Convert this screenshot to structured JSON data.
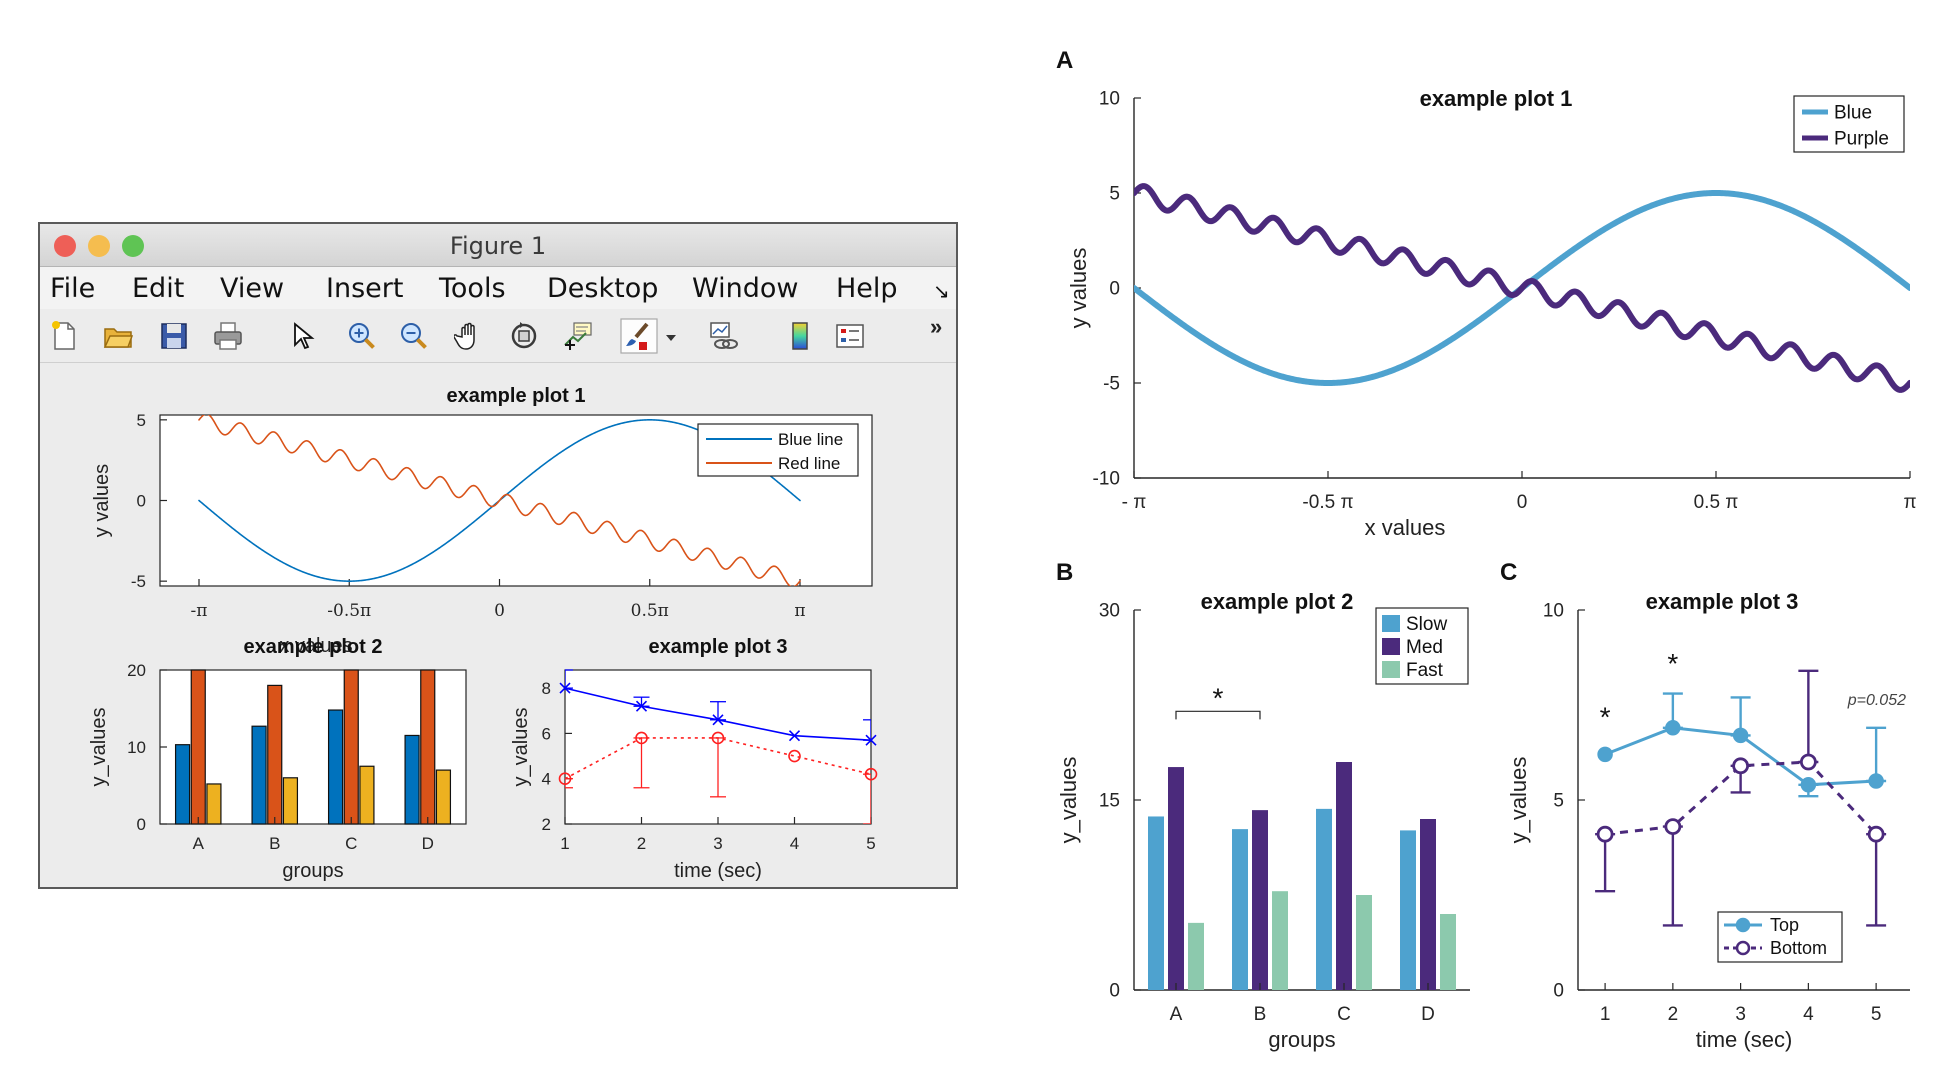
{
  "window": {
    "title": "Figure 1",
    "menu": [
      "File",
      "Edit",
      "View",
      "Insert",
      "Tools",
      "Desktop",
      "Window",
      "Help"
    ],
    "toolbar_icons": [
      "new-file-icon",
      "open-folder-icon",
      "save-icon",
      "print-icon",
      "pointer-icon",
      "zoom-in-icon",
      "zoom-out-icon",
      "pan-hand-icon",
      "rotate-3d-icon",
      "data-cursor-icon",
      "brush-icon",
      "dropdown-arrow-icon",
      "link-plot-icon",
      "colorbar-icon",
      "legend-icon",
      "more-icon"
    ],
    "more_glyph": "»",
    "corner_glyph": "↘",
    "colors": {
      "close": "#ee5f57",
      "minimize": "#f5bd4f",
      "zoom": "#5fc454"
    }
  },
  "chart_data": [
    {
      "id": "matlab-plot-1",
      "type": "line",
      "title": "example plot 1",
      "xlabel": "x values",
      "ylabel": "y values",
      "xlim": [
        -3.1416,
        3.1416
      ],
      "ylim": [
        -5.3,
        5.3
      ],
      "xticks": [
        -3.1416,
        -1.5708,
        0,
        1.5708,
        3.1416
      ],
      "xticklabels": [
        "-π",
        "-0.5π",
        "0",
        "0.5π",
        "π"
      ],
      "yticks": [
        -5,
        0,
        5
      ],
      "yticklabels": [
        "-5",
        "0",
        "5"
      ],
      "legend_position": "top-right",
      "series": [
        {
          "name": "Blue line",
          "formula": "5*sin(x)",
          "color": "#0072bd"
        },
        {
          "name": "Red line",
          "formula": "-1.59*x + 0.5*sin(18*x)",
          "color": "#d95319"
        }
      ]
    },
    {
      "id": "matlab-plot-2",
      "type": "bar",
      "title": "example plot 2",
      "xlabel": "groups",
      "ylabel": "y_values",
      "categories": [
        "A",
        "B",
        "C",
        "D"
      ],
      "ylim": [
        0,
        20
      ],
      "yticks": [
        0,
        10,
        20
      ],
      "series": [
        {
          "values": [
            10.3,
            12.7,
            14.8,
            11.5
          ],
          "color": "#0072bd"
        },
        {
          "values": [
            20,
            18,
            20,
            20
          ],
          "color": "#d95319"
        },
        {
          "values": [
            5.2,
            6,
            7.5,
            7
          ],
          "color": "#edb120"
        }
      ]
    },
    {
      "id": "matlab-plot-3",
      "type": "line",
      "title": "example plot 3",
      "xlabel": "time (sec)",
      "ylabel": "y_values",
      "x": [
        1,
        2,
        3,
        4,
        5
      ],
      "xlim": [
        1,
        5
      ],
      "ylim": [
        2,
        8.8
      ],
      "yticks": [
        2,
        4,
        6,
        8
      ],
      "series": [
        {
          "values": [
            8,
            7.2,
            6.6,
            5.9,
            5.7
          ],
          "err_low": [
            8,
            7.2,
            6.6,
            5.9,
            5.7
          ],
          "err_high": [
            8.8,
            7.6,
            7.4,
            5.9,
            6.6
          ],
          "color": "#0000ff",
          "marker": "x",
          "dash": false
        },
        {
          "values": [
            4,
            5.8,
            5.8,
            5,
            4.2
          ],
          "err_low": [
            3.6,
            3.6,
            3.2,
            5,
            2.0
          ],
          "err_high": [
            4,
            5.8,
            5.8,
            5,
            4.2
          ],
          "color": "#ff2020",
          "marker": "o",
          "dash": true
        }
      ]
    },
    {
      "id": "panel-A",
      "panel_letter": "A",
      "type": "line",
      "title": "example plot 1",
      "xlabel": "x values",
      "ylabel": "y values",
      "xlim": [
        -3.1416,
        3.1416
      ],
      "ylim": [
        -10,
        10
      ],
      "xticks": [
        -3.1416,
        -1.5708,
        0,
        1.5708,
        3.1416
      ],
      "xticklabels": [
        "- π",
        "-0.5 π",
        "0",
        "0.5  π",
        "π"
      ],
      "yticks": [
        -10,
        -5,
        0,
        5,
        10
      ],
      "yticklabels": [
        "-10",
        "-5",
        "0",
        "5",
        "10"
      ],
      "legend_position": "top-right",
      "series": [
        {
          "name": "Blue",
          "formula": "5*sin(x)",
          "color": "#4ea2cf"
        },
        {
          "name": "Purple",
          "formula": "-1.59*x + 0.5*sin(18*x)",
          "color": "#4b2a7c"
        }
      ]
    },
    {
      "id": "panel-B",
      "panel_letter": "B",
      "type": "bar",
      "title": "example plot 2",
      "xlabel": "groups",
      "ylabel": "y_values",
      "categories": [
        "A",
        "B",
        "C",
        "D"
      ],
      "ylim": [
        0,
        30
      ],
      "yticks": [
        0,
        15,
        30
      ],
      "legend_position": "top-right",
      "significance": {
        "from": "A",
        "to": "B",
        "level": 22,
        "label": "*"
      },
      "series": [
        {
          "name": "Slow",
          "values": [
            13.7,
            12.7,
            14.3,
            12.6
          ],
          "color": "#4ea2cf"
        },
        {
          "name": "Med",
          "values": [
            17.6,
            14.2,
            18,
            13.5
          ],
          "color": "#4b2a7c"
        },
        {
          "name": "Fast",
          "values": [
            5.3,
            7.8,
            7.5,
            6
          ],
          "color": "#8cc9ad"
        }
      ]
    },
    {
      "id": "panel-C",
      "panel_letter": "C",
      "type": "line",
      "title": "example plot 3",
      "xlabel": "time (sec)",
      "ylabel": "y_values",
      "x": [
        1,
        2,
        3,
        4,
        5
      ],
      "xlim": [
        0.6,
        5.5
      ],
      "ylim": [
        0,
        10
      ],
      "yticks": [
        0,
        5,
        10
      ],
      "legend_position": "bottom-right",
      "annotation": "p=0.052",
      "star_label": "*",
      "stars_at": [
        [
          1,
          7.2
        ],
        [
          2,
          8.6
        ]
      ],
      "series": [
        {
          "name": "Top",
          "values": [
            6.2,
            6.9,
            6.7,
            5.4,
            5.5
          ],
          "err_low": [
            6.2,
            6.9,
            6.7,
            5.1,
            5.5
          ],
          "err_high": [
            6.2,
            7.8,
            7.7,
            5.4,
            6.9
          ],
          "color": "#4ea2cf",
          "marker": "filled-circle",
          "dash": false
        },
        {
          "name": "Bottom",
          "values": [
            4.1,
            4.3,
            5.9,
            6,
            4.1
          ],
          "err_low": [
            2.6,
            1.7,
            5.2,
            6,
            1.7
          ],
          "err_high": [
            4.1,
            4.3,
            5.9,
            8.4,
            4.1
          ],
          "color": "#4b2a7c",
          "marker": "open-circle",
          "dash": true
        }
      ]
    }
  ]
}
